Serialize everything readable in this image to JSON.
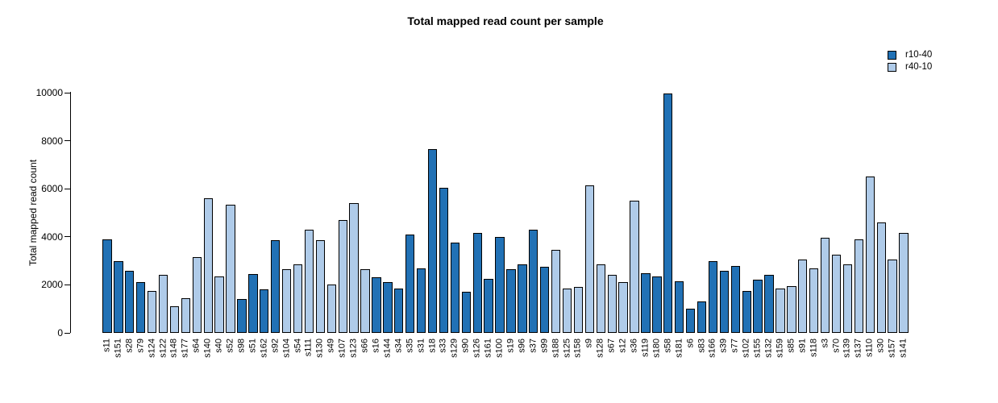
{
  "chart_data": {
    "type": "bar",
    "title": "Total mapped read count per sample",
    "xlabel": "",
    "ylabel": "Total mapped read count",
    "ylim": [
      0,
      10000
    ],
    "yticks": [
      0,
      2000,
      4000,
      6000,
      8000,
      10000
    ],
    "grid": false,
    "legend_position": "top-right",
    "legend": [
      {
        "label": "r10-40",
        "color": "#2171B5"
      },
      {
        "label": "r40-10",
        "color": "#AFCBE9"
      }
    ],
    "series_colors": {
      "r10-40": "#2171B5",
      "r40-10": "#AFCBE9"
    },
    "bar_border_color": "#000000",
    "samples": [
      {
        "label": "s11",
        "value": 3900,
        "group": "r10-40"
      },
      {
        "label": "s151",
        "value": 3000,
        "group": "r10-40"
      },
      {
        "label": "s28",
        "value": 2600,
        "group": "r10-40"
      },
      {
        "label": "s79",
        "value": 2100,
        "group": "r10-40"
      },
      {
        "label": "s124",
        "value": 1750,
        "group": "r40-10"
      },
      {
        "label": "s122",
        "value": 2400,
        "group": "r40-10"
      },
      {
        "label": "s148",
        "value": 1100,
        "group": "r40-10"
      },
      {
        "label": "s177",
        "value": 1450,
        "group": "r40-10"
      },
      {
        "label": "s64",
        "value": 3150,
        "group": "r40-10"
      },
      {
        "label": "s140",
        "value": 5600,
        "group": "r40-10"
      },
      {
        "label": "s40",
        "value": 2350,
        "group": "r40-10"
      },
      {
        "label": "s52",
        "value": 5350,
        "group": "r40-10"
      },
      {
        "label": "s98",
        "value": 1400,
        "group": "r10-40"
      },
      {
        "label": "s51",
        "value": 2450,
        "group": "r10-40"
      },
      {
        "label": "s162",
        "value": 1800,
        "group": "r10-40"
      },
      {
        "label": "s92",
        "value": 3850,
        "group": "r10-40"
      },
      {
        "label": "s104",
        "value": 2650,
        "group": "r40-10"
      },
      {
        "label": "s54",
        "value": 2850,
        "group": "r40-10"
      },
      {
        "label": "s111",
        "value": 4300,
        "group": "r40-10"
      },
      {
        "label": "s130",
        "value": 3850,
        "group": "r40-10"
      },
      {
        "label": "s49",
        "value": 2000,
        "group": "r40-10"
      },
      {
        "label": "s107",
        "value": 4700,
        "group": "r40-10"
      },
      {
        "label": "s123",
        "value": 5400,
        "group": "r40-10"
      },
      {
        "label": "s66",
        "value": 2650,
        "group": "r40-10"
      },
      {
        "label": "s16",
        "value": 2300,
        "group": "r10-40"
      },
      {
        "label": "s144",
        "value": 2100,
        "group": "r10-40"
      },
      {
        "label": "s34",
        "value": 1850,
        "group": "r10-40"
      },
      {
        "label": "s35",
        "value": 4100,
        "group": "r10-40"
      },
      {
        "label": "s31",
        "value": 2700,
        "group": "r10-40"
      },
      {
        "label": "s18",
        "value": 7650,
        "group": "r10-40"
      },
      {
        "label": "s33",
        "value": 6050,
        "group": "r10-40"
      },
      {
        "label": "s129",
        "value": 3750,
        "group": "r10-40"
      },
      {
        "label": "s90",
        "value": 1700,
        "group": "r10-40"
      },
      {
        "label": "s126",
        "value": 4150,
        "group": "r10-40"
      },
      {
        "label": "s161",
        "value": 2250,
        "group": "r10-40"
      },
      {
        "label": "s100",
        "value": 4000,
        "group": "r10-40"
      },
      {
        "label": "s19",
        "value": 2650,
        "group": "r10-40"
      },
      {
        "label": "s96",
        "value": 2850,
        "group": "r10-40"
      },
      {
        "label": "s37",
        "value": 4300,
        "group": "r10-40"
      },
      {
        "label": "s99",
        "value": 2750,
        "group": "r10-40"
      },
      {
        "label": "s188",
        "value": 3450,
        "group": "r40-10"
      },
      {
        "label": "s125",
        "value": 1850,
        "group": "r40-10"
      },
      {
        "label": "s158",
        "value": 1900,
        "group": "r40-10"
      },
      {
        "label": "s9",
        "value": 6150,
        "group": "r40-10"
      },
      {
        "label": "s128",
        "value": 2850,
        "group": "r40-10"
      },
      {
        "label": "s67",
        "value": 2400,
        "group": "r40-10"
      },
      {
        "label": "s12",
        "value": 2100,
        "group": "r40-10"
      },
      {
        "label": "s36",
        "value": 5500,
        "group": "r40-10"
      },
      {
        "label": "s119",
        "value": 2500,
        "group": "r10-40"
      },
      {
        "label": "s180",
        "value": 2350,
        "group": "r10-40"
      },
      {
        "label": "s58",
        "value": 9950,
        "group": "r10-40"
      },
      {
        "label": "s181",
        "value": 2150,
        "group": "r10-40"
      },
      {
        "label": "s6",
        "value": 1000,
        "group": "r10-40"
      },
      {
        "label": "s83",
        "value": 1300,
        "group": "r10-40"
      },
      {
        "label": "s166",
        "value": 3000,
        "group": "r10-40"
      },
      {
        "label": "s39",
        "value": 2600,
        "group": "r10-40"
      },
      {
        "label": "s77",
        "value": 2800,
        "group": "r10-40"
      },
      {
        "label": "s102",
        "value": 1750,
        "group": "r10-40"
      },
      {
        "label": "s155",
        "value": 2200,
        "group": "r10-40"
      },
      {
        "label": "s132",
        "value": 2400,
        "group": "r10-40"
      },
      {
        "label": "s159",
        "value": 1850,
        "group": "r40-10"
      },
      {
        "label": "s85",
        "value": 1950,
        "group": "r40-10"
      },
      {
        "label": "s91",
        "value": 3050,
        "group": "r40-10"
      },
      {
        "label": "s118",
        "value": 2700,
        "group": "r40-10"
      },
      {
        "label": "s3",
        "value": 3950,
        "group": "r40-10"
      },
      {
        "label": "s70",
        "value": 3250,
        "group": "r40-10"
      },
      {
        "label": "s139",
        "value": 2850,
        "group": "r40-10"
      },
      {
        "label": "s137",
        "value": 3900,
        "group": "r40-10"
      },
      {
        "label": "s110",
        "value": 6500,
        "group": "r40-10"
      },
      {
        "label": "s30",
        "value": 4600,
        "group": "r40-10"
      },
      {
        "label": "s157",
        "value": 3050,
        "group": "r40-10"
      },
      {
        "label": "s141",
        "value": 4150,
        "group": "r40-10"
      }
    ]
  }
}
